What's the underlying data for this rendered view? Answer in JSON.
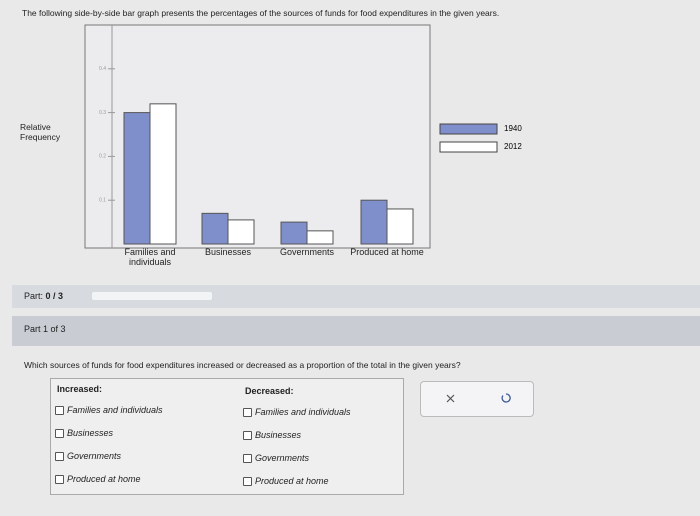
{
  "header": {
    "prompt": "The following side-by-side bar graph presents the percentages of the sources of funds for food expenditures in the given years."
  },
  "chart_data": {
    "type": "bar",
    "ylabel": "Relative Frequency",
    "categories": [
      "Families and individuals",
      "Businesses",
      "Governments",
      "Produced at home"
    ],
    "series": [
      {
        "name": "1940",
        "color": "#7f8fcc",
        "values": [
          0.3,
          0.07,
          0.05,
          0.1
        ]
      },
      {
        "name": "2012",
        "color": "#ffffff",
        "values": [
          0.32,
          0.055,
          0.03,
          0.08
        ]
      }
    ],
    "ylim": [
      0,
      0.5
    ],
    "yticks": [
      0.1,
      0.2,
      0.3,
      0.4
    ],
    "legend": "right"
  },
  "progress": {
    "label": "Part:",
    "score": "0 / 3"
  },
  "part": "Part 1 of 3",
  "question": "Which sources of funds for food expenditures increased or decreased as a proportion of the total in the given years?",
  "answers": {
    "increased": {
      "title": "Increased:",
      "options": [
        "Families and individuals",
        "Businesses",
        "Governments",
        "Produced at home"
      ]
    },
    "decreased": {
      "title": "Decreased:",
      "options": [
        "Families and individuals",
        "Businesses",
        "Governments",
        "Produced at home"
      ]
    }
  }
}
